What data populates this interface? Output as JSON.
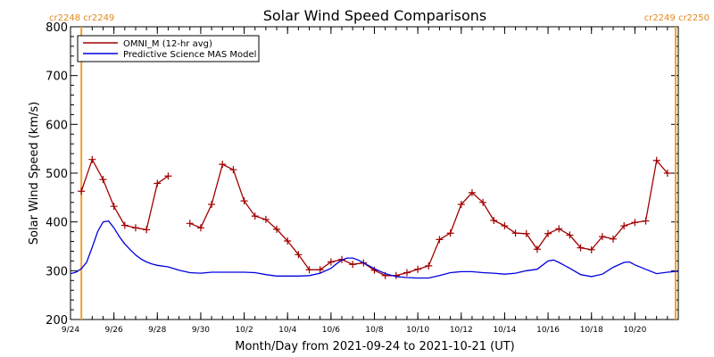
{
  "chart_data": {
    "type": "line",
    "title": "Solar Wind Speed Comparisons",
    "xlabel": "Month/Day from 2021-09-24 to 2021-10-21 (UT)",
    "ylabel": "Solar Wind Speed (km/s)",
    "xlim": [
      "2021-09-24",
      "2021-10-22"
    ],
    "ylim": [
      200,
      800
    ],
    "yticks": [
      200,
      300,
      400,
      500,
      600,
      700,
      800
    ],
    "xticks": [
      {
        "date": "2021-09-24",
        "label": "9/24"
      },
      {
        "date": "2021-09-26",
        "label": "9/26"
      },
      {
        "date": "2021-09-28",
        "label": "9/28"
      },
      {
        "date": "2021-09-30",
        "label": "9/30"
      },
      {
        "date": "2021-10-02",
        "label": "10/2"
      },
      {
        "date": "2021-10-04",
        "label": "10/4"
      },
      {
        "date": "2021-10-06",
        "label": "10/6"
      },
      {
        "date": "2021-10-08",
        "label": "10/8"
      },
      {
        "date": "2021-10-10",
        "label": "10/10"
      },
      {
        "date": "2021-10-12",
        "label": "10/12"
      },
      {
        "date": "2021-10-14",
        "label": "10/14"
      },
      {
        "date": "2021-10-16",
        "label": "10/16"
      },
      {
        "date": "2021-10-18",
        "label": "10/18"
      },
      {
        "date": "2021-10-20",
        "label": "10/20"
      }
    ],
    "legend_position": "top-left",
    "carrington_markers": [
      {
        "date": "2021-09-24 12:00",
        "label": "cr2248 cr2249",
        "side": "left",
        "color": "#f0a030"
      },
      {
        "date": "2021-10-21 21:00",
        "label": "cr2249 cr2250",
        "side": "right",
        "color": "#f0a030"
      }
    ],
    "series": [
      {
        "name": "OMNI_M (12-hr avg)",
        "color": "#a00000",
        "marker": "plus",
        "segments": [
          [
            [
              "2021-09-24 12:00",
              463
            ],
            [
              "2021-09-25 00:00",
              528
            ],
            [
              "2021-09-25 12:00",
              487
            ],
            [
              "2021-09-26 00:00",
              432
            ],
            [
              "2021-09-26 12:00",
              393
            ],
            [
              "2021-09-27 00:00",
              388
            ],
            [
              "2021-09-27 12:00",
              384
            ],
            [
              "2021-09-28 00:00",
              479
            ],
            [
              "2021-09-28 12:00",
              494
            ]
          ],
          [
            [
              "2021-09-29 12:00",
              397
            ],
            [
              "2021-09-30 00:00",
              388
            ],
            [
              "2021-09-30 12:00",
              436
            ],
            [
              "2021-10-01 00:00",
              518
            ],
            [
              "2021-10-01 12:00",
              507
            ],
            [
              "2021-10-02 00:00",
              443
            ],
            [
              "2021-10-02 12:00",
              412
            ],
            [
              "2021-10-03 00:00",
              405
            ],
            [
              "2021-10-03 12:00",
              385
            ],
            [
              "2021-10-04 00:00",
              361
            ],
            [
              "2021-10-04 12:00",
              333
            ],
            [
              "2021-10-05 00:00",
              302
            ],
            [
              "2021-10-05 12:00",
              302
            ],
            [
              "2021-10-06 00:00",
              318
            ],
            [
              "2021-10-06 12:00",
              323
            ],
            [
              "2021-10-07 00:00",
              313
            ],
            [
              "2021-10-07 12:00",
              316
            ],
            [
              "2021-10-08 00:00",
              301
            ],
            [
              "2021-10-08 12:00",
              290
            ],
            [
              "2021-10-09 00:00",
              290
            ],
            [
              "2021-10-09 12:00",
              296
            ],
            [
              "2021-10-10 00:00",
              303
            ],
            [
              "2021-10-10 12:00",
              310
            ],
            [
              "2021-10-11 00:00",
              364
            ],
            [
              "2021-10-11 12:00",
              377
            ],
            [
              "2021-10-12 00:00",
              436
            ],
            [
              "2021-10-12 12:00",
              460
            ],
            [
              "2021-10-13 00:00",
              440
            ],
            [
              "2021-10-13 12:00",
              403
            ],
            [
              "2021-10-14 00:00",
              392
            ],
            [
              "2021-10-14 12:00",
              377
            ],
            [
              "2021-10-15 00:00",
              376
            ],
            [
              "2021-10-15 12:00",
              344
            ],
            [
              "2021-10-16 00:00",
              376
            ],
            [
              "2021-10-16 12:00",
              386
            ],
            [
              "2021-10-17 00:00",
              373
            ],
            [
              "2021-10-17 12:00",
              347
            ],
            [
              "2021-10-18 00:00",
              343
            ],
            [
              "2021-10-18 12:00",
              370
            ],
            [
              "2021-10-19 00:00",
              365
            ],
            [
              "2021-10-19 12:00",
              392
            ],
            [
              "2021-10-20 00:00",
              399
            ],
            [
              "2021-10-20 12:00",
              402
            ],
            [
              "2021-10-21 00:00",
              526
            ],
            [
              "2021-10-21 12:00",
              500
            ]
          ]
        ]
      },
      {
        "name": "Predictive Science MAS Model",
        "color": "#0000dd",
        "marker": "none",
        "segments": [
          [
            [
              "2021-09-24 00:00",
              294
            ],
            [
              "2021-09-24 06:00",
              297
            ],
            [
              "2021-09-24 12:00",
              304
            ],
            [
              "2021-09-24 18:00",
              318
            ],
            [
              "2021-09-25 00:00",
              348
            ],
            [
              "2021-09-25 06:00",
              380
            ],
            [
              "2021-09-25 12:00",
              400
            ],
            [
              "2021-09-25 18:00",
              402
            ],
            [
              "2021-09-26 00:00",
              388
            ],
            [
              "2021-09-26 06:00",
              370
            ],
            [
              "2021-09-26 12:00",
              355
            ],
            [
              "2021-09-26 18:00",
              343
            ],
            [
              "2021-09-27 00:00",
              332
            ],
            [
              "2021-09-27 06:00",
              324
            ],
            [
              "2021-09-27 12:00",
              318
            ],
            [
              "2021-09-27 18:00",
              314
            ],
            [
              "2021-09-28 00:00",
              311
            ],
            [
              "2021-09-28 12:00",
              308
            ],
            [
              "2021-09-29 00:00",
              301
            ],
            [
              "2021-09-29 12:00",
              296
            ],
            [
              "2021-09-30 00:00",
              295
            ],
            [
              "2021-09-30 12:00",
              297
            ],
            [
              "2021-10-01 00:00",
              297
            ],
            [
              "2021-10-01 12:00",
              297
            ],
            [
              "2021-10-02 00:00",
              297
            ],
            [
              "2021-10-02 12:00",
              296
            ],
            [
              "2021-10-03 00:00",
              292
            ],
            [
              "2021-10-03 12:00",
              289
            ],
            [
              "2021-10-04 00:00",
              289
            ],
            [
              "2021-10-04 12:00",
              289
            ],
            [
              "2021-10-05 00:00",
              290
            ],
            [
              "2021-10-05 12:00",
              295
            ],
            [
              "2021-10-06 00:00",
              305
            ],
            [
              "2021-10-06 06:00",
              314
            ],
            [
              "2021-10-06 12:00",
              322
            ],
            [
              "2021-10-06 18:00",
              326
            ],
            [
              "2021-10-07 00:00",
              326
            ],
            [
              "2021-10-07 06:00",
              322
            ],
            [
              "2021-10-07 12:00",
              316
            ],
            [
              "2021-10-08 00:00",
              304
            ],
            [
              "2021-10-08 12:00",
              294
            ],
            [
              "2021-10-09 00:00",
              288
            ],
            [
              "2021-10-09 12:00",
              286
            ],
            [
              "2021-10-10 00:00",
              285
            ],
            [
              "2021-10-10 12:00",
              285
            ],
            [
              "2021-10-11 00:00",
              290
            ],
            [
              "2021-10-11 12:00",
              296
            ],
            [
              "2021-10-12 00:00",
              298
            ],
            [
              "2021-10-12 12:00",
              298
            ],
            [
              "2021-10-13 00:00",
              296
            ],
            [
              "2021-10-13 12:00",
              295
            ],
            [
              "2021-10-14 00:00",
              293
            ],
            [
              "2021-10-14 12:00",
              295
            ],
            [
              "2021-10-15 00:00",
              300
            ],
            [
              "2021-10-15 12:00",
              303
            ],
            [
              "2021-10-16 00:00",
              320
            ],
            [
              "2021-10-16 06:00",
              322
            ],
            [
              "2021-10-16 12:00",
              317
            ],
            [
              "2021-10-17 00:00",
              305
            ],
            [
              "2021-10-17 12:00",
              292
            ],
            [
              "2021-10-18 00:00",
              288
            ],
            [
              "2021-10-18 12:00",
              293
            ],
            [
              "2021-10-19 00:00",
              307
            ],
            [
              "2021-10-19 12:00",
              317
            ],
            [
              "2021-10-19 18:00",
              318
            ],
            [
              "2021-10-20 00:00",
              312
            ],
            [
              "2021-10-20 12:00",
              303
            ],
            [
              "2021-10-21 00:00",
              294
            ],
            [
              "2021-10-21 12:00",
              297
            ],
            [
              "2021-10-22 00:00",
              299
            ]
          ]
        ]
      }
    ]
  }
}
